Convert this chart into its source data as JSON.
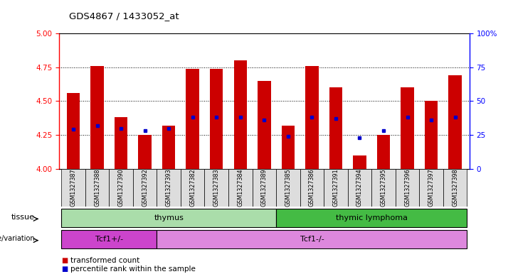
{
  "title": "GDS4867 / 1433052_at",
  "samples": [
    "GSM1327387",
    "GSM1327388",
    "GSM1327390",
    "GSM1327392",
    "GSM1327393",
    "GSM1327382",
    "GSM1327383",
    "GSM1327384",
    "GSM1327389",
    "GSM1327385",
    "GSM1327386",
    "GSM1327391",
    "GSM1327394",
    "GSM1327395",
    "GSM1327396",
    "GSM1327397",
    "GSM1327398"
  ],
  "transformed_count": [
    4.56,
    4.76,
    4.38,
    4.25,
    4.32,
    4.74,
    4.74,
    4.8,
    4.65,
    4.32,
    4.76,
    4.6,
    4.1,
    4.25,
    4.6,
    4.5,
    4.69
  ],
  "percentile_rank": [
    29,
    32,
    30,
    28,
    30,
    38,
    38,
    38,
    36,
    24,
    38,
    37,
    23,
    28,
    38,
    36,
    38
  ],
  "ylim_left": [
    4.0,
    5.0
  ],
  "ylim_right": [
    0,
    100
  ],
  "yticks_left": [
    4.0,
    4.25,
    4.5,
    4.75,
    5.0
  ],
  "yticks_right": [
    0,
    25,
    50,
    75,
    100
  ],
  "bar_color": "#cc0000",
  "dot_color": "#0000cc",
  "tissue_groups": [
    {
      "label": "thymus",
      "start": 0,
      "end": 8,
      "color": "#aaddaa"
    },
    {
      "label": "thymic lymphoma",
      "start": 9,
      "end": 16,
      "color": "#44bb44"
    }
  ],
  "genotype_groups": [
    {
      "label": "Tcf1+/-",
      "start": 0,
      "end": 3,
      "color": "#cc44cc"
    },
    {
      "label": "Tcf1-/-",
      "start": 4,
      "end": 16,
      "color": "#dd88dd"
    }
  ],
  "legend_items": [
    {
      "label": "transformed count",
      "color": "#cc0000"
    },
    {
      "label": "percentile rank within the sample",
      "color": "#0000cc"
    }
  ],
  "grid_yticks": [
    4.25,
    4.5,
    4.75
  ],
  "bg_color": "#ffffff",
  "label_row1": "tissue",
  "label_row2": "genotype/variation",
  "bar_width": 0.55,
  "xlabels_bg": "#dddddd",
  "right_axis_label": "100%"
}
